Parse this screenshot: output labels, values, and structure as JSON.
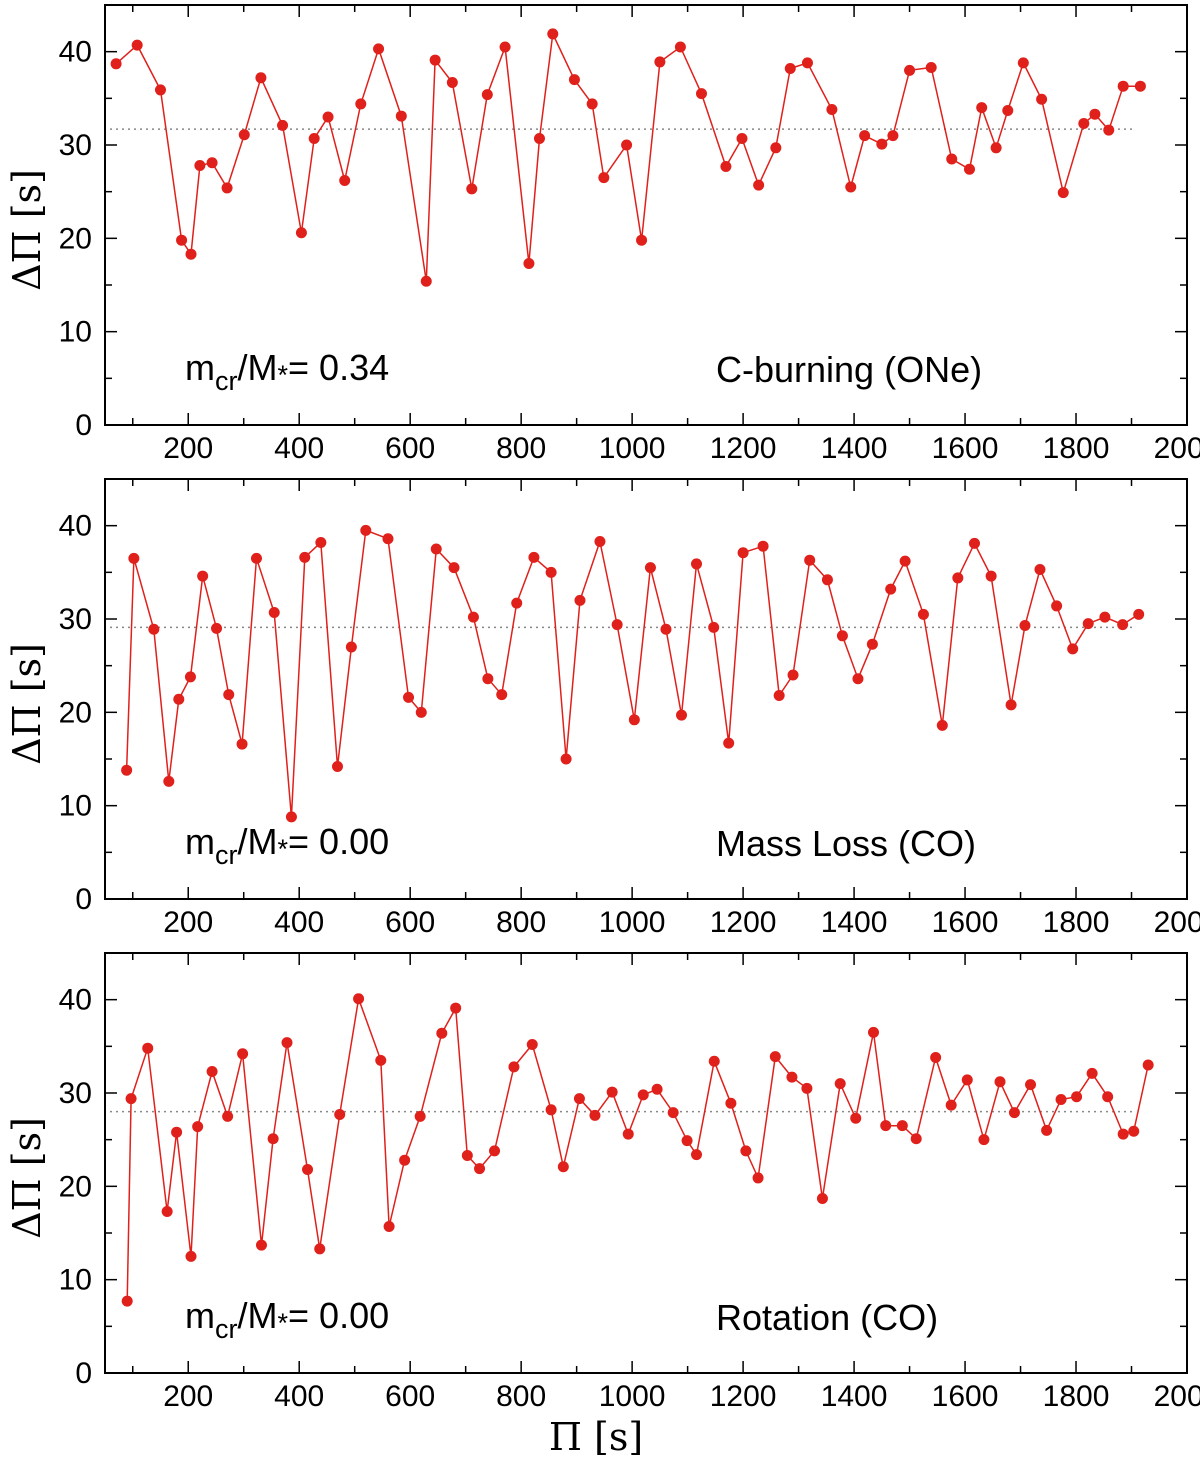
{
  "chart_data": [
    {
      "type": "line",
      "xlabel": "",
      "ylabel": "ΔΠ [s]",
      "xlim": [
        50,
        2000
      ],
      "ylim": [
        0,
        45
      ],
      "xticks": [
        200,
        400,
        600,
        800,
        1000,
        1200,
        1400,
        1600,
        1800,
        2000
      ],
      "yticks": [
        0,
        10,
        20,
        30,
        40
      ],
      "grid": false,
      "mean_dpi": 31.7,
      "annotation_left": "m_cr/M_*= 0.34",
      "annotation_right": "C-burning (ONe)",
      "series": [
        {
          "x": [
            70,
            108,
            150,
            188,
            205,
            221,
            243,
            270,
            301,
            331,
            370,
            404,
            427,
            452,
            482,
            511,
            543,
            584,
            629,
            645,
            676,
            711,
            739,
            771,
            814,
            833,
            857,
            896,
            928,
            949,
            990,
            1017,
            1050,
            1087,
            1125,
            1169,
            1198,
            1228,
            1259,
            1285,
            1316,
            1360,
            1394,
            1419,
            1450,
            1470,
            1500,
            1539,
            1576,
            1608,
            1630,
            1656,
            1677,
            1705,
            1738,
            1777,
            1814,
            1834,
            1859,
            1885,
            1916
          ],
          "y": [
            38.7,
            40.7,
            35.9,
            19.8,
            18.3,
            27.8,
            28.1,
            25.4,
            31.1,
            37.2,
            32.1,
            20.6,
            30.7,
            33.0,
            26.2,
            34.4,
            40.3,
            33.1,
            15.4,
            39.1,
            36.7,
            25.3,
            35.4,
            40.5,
            17.3,
            30.7,
            41.9,
            37.0,
            34.4,
            26.5,
            30.0,
            19.8,
            38.9,
            40.5,
            35.5,
            27.7,
            30.7,
            25.7,
            29.7,
            38.2,
            38.8,
            33.8,
            25.5,
            31.0,
            30.1,
            31.0,
            38.0,
            38.3,
            28.5,
            27.4,
            34.0,
            29.7,
            33.7,
            38.8,
            34.9,
            24.9,
            32.3,
            33.3,
            31.6,
            36.3,
            36.3
          ]
        }
      ]
    },
    {
      "type": "line",
      "xlabel": "",
      "ylabel": "ΔΠ [s]",
      "xlim": [
        50,
        2000
      ],
      "ylim": [
        0,
        45
      ],
      "xticks": [
        200,
        400,
        600,
        800,
        1000,
        1200,
        1400,
        1600,
        1800,
        2000
      ],
      "yticks": [
        0,
        10,
        20,
        30,
        40
      ],
      "grid": false,
      "mean_dpi": 29.1,
      "annotation_left": "m_cr/M_*= 0.00",
      "annotation_right": "Mass Loss (CO)",
      "series": [
        {
          "x": [
            89,
            102,
            138,
            165,
            183,
            204,
            226,
            251,
            273,
            297,
            323,
            355,
            386,
            410,
            439,
            469,
            494,
            520,
            560,
            597,
            620,
            647,
            679,
            714,
            740,
            765,
            792,
            823,
            854,
            881,
            906,
            942,
            973,
            1004,
            1033,
            1061,
            1089,
            1116,
            1147,
            1174,
            1200,
            1236,
            1265,
            1290,
            1320,
            1352,
            1379,
            1407,
            1433,
            1466,
            1492,
            1525,
            1559,
            1587,
            1617,
            1647,
            1683,
            1708,
            1735,
            1765,
            1794,
            1822,
            1852,
            1884,
            1913
          ],
          "y": [
            13.8,
            36.5,
            28.9,
            12.6,
            21.4,
            23.8,
            34.6,
            29.0,
            21.9,
            16.6,
            36.5,
            30.7,
            8.8,
            36.6,
            38.2,
            14.2,
            27.0,
            39.5,
            38.6,
            21.6,
            20.0,
            37.5,
            35.5,
            30.2,
            23.6,
            21.9,
            31.7,
            36.6,
            35.0,
            15.0,
            32.0,
            38.3,
            29.4,
            19.2,
            35.5,
            28.9,
            19.7,
            35.9,
            29.1,
            16.7,
            37.1,
            37.8,
            21.8,
            24.0,
            36.3,
            34.2,
            28.2,
            23.6,
            27.3,
            33.2,
            36.2,
            30.5,
            18.6,
            34.4,
            38.1,
            34.6,
            20.8,
            29.3,
            35.3,
            31.4,
            26.8,
            29.5,
            30.2,
            29.4,
            30.5
          ]
        }
      ]
    },
    {
      "type": "line",
      "xlabel": "Π [s]",
      "ylabel": "ΔΠ [s]",
      "xlim": [
        50,
        2000
      ],
      "ylim": [
        0,
        45
      ],
      "xticks": [
        200,
        400,
        600,
        800,
        1000,
        1200,
        1400,
        1600,
        1800,
        2000
      ],
      "yticks": [
        0,
        10,
        20,
        30,
        40
      ],
      "grid": false,
      "mean_dpi": 28.0,
      "annotation_left": "m_cr/M_*= 0.00",
      "annotation_right": "Rotation (CO)",
      "series": [
        {
          "x": [
            90,
            97,
            127,
            162,
            179,
            205,
            217,
            243,
            271,
            298,
            332,
            353,
            378,
            415,
            437,
            473,
            507,
            547,
            562,
            590,
            618,
            657,
            682,
            703,
            725,
            752,
            787,
            820,
            854,
            876,
            905,
            933,
            964,
            993,
            1020,
            1045,
            1074,
            1099,
            1116,
            1148,
            1178,
            1205,
            1227,
            1258,
            1288,
            1315,
            1343,
            1375,
            1403,
            1435,
            1457,
            1487,
            1512,
            1547,
            1575,
            1604,
            1634,
            1663,
            1689,
            1718,
            1747,
            1773,
            1801,
            1829,
            1857,
            1885,
            1904,
            1930
          ],
          "y": [
            7.7,
            29.4,
            34.8,
            17.3,
            25.8,
            12.5,
            26.4,
            32.3,
            27.5,
            34.2,
            13.7,
            25.1,
            35.4,
            21.8,
            13.3,
            27.7,
            40.1,
            33.5,
            15.7,
            22.8,
            27.5,
            36.4,
            39.1,
            23.3,
            21.9,
            23.8,
            32.8,
            35.2,
            28.2,
            22.1,
            29.4,
            27.6,
            30.1,
            25.6,
            29.8,
            30.4,
            27.9,
            24.9,
            23.4,
            33.4,
            28.9,
            23.8,
            20.9,
            33.9,
            31.7,
            30.5,
            18.7,
            31.0,
            27.3,
            36.5,
            26.5,
            26.5,
            25.1,
            33.8,
            28.7,
            31.4,
            25.0,
            31.2,
            27.9,
            30.9,
            26.0,
            29.3,
            29.6,
            32.1,
            29.6,
            25.6,
            25.9,
            33.0
          ]
        }
      ]
    }
  ]
}
